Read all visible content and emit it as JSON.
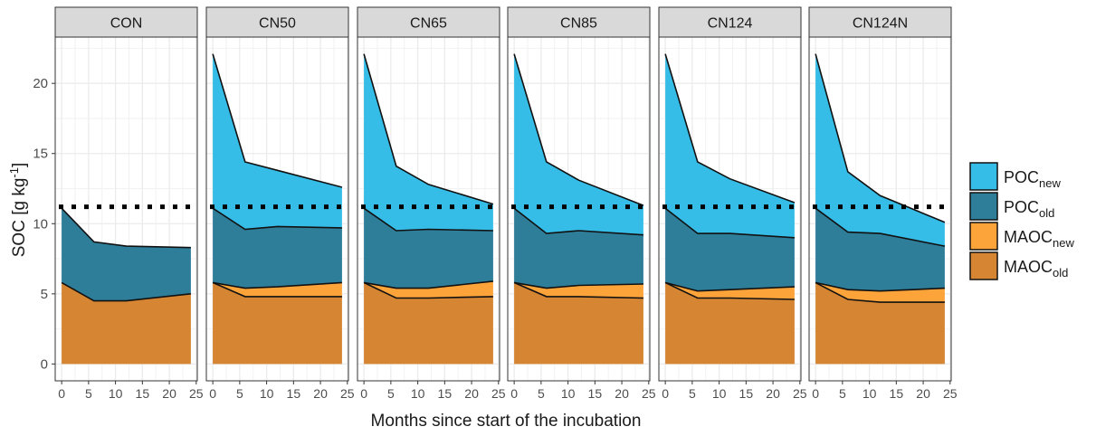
{
  "chart_data": {
    "type": "area",
    "stacked": true,
    "facet_labels": [
      "CON",
      "CN50",
      "CN65",
      "CN85",
      "CN124",
      "CN124N"
    ],
    "xlabel": "Months since start of the incubation",
    "ylabel": "SOC [g kg",
    "ylabel_sup": "-1",
    "ylabel_close": "]",
    "x": [
      0,
      6,
      12,
      24
    ],
    "x_ticks": [
      0,
      5,
      10,
      15,
      20,
      25
    ],
    "y_ticks": [
      0,
      5,
      10,
      15,
      20
    ],
    "xlim": [
      -1.2,
      25.2
    ],
    "ylim": [
      -1.2,
      23.3
    ],
    "reference_line": 11.2,
    "grid": true,
    "legend_position": "right",
    "colors": {
      "MAOC_old": "#d68532",
      "MAOC_new": "#fca33a",
      "POC_old": "#2e7d99",
      "POC_new": "#35bde8",
      "panel_strip": "#d9d9d9",
      "gridline": "#ebebeb"
    },
    "legend": [
      {
        "key": "POC_new",
        "base": "POC",
        "sub": "new"
      },
      {
        "key": "POC_old",
        "base": "POC",
        "sub": "old"
      },
      {
        "key": "MAOC_new",
        "base": "MAOC",
        "sub": "new"
      },
      {
        "key": "MAOC_old",
        "base": "MAOC",
        "sub": "old"
      }
    ],
    "panels": [
      {
        "label": "CON",
        "series": {
          "MAOC_old": [
            5.8,
            4.5,
            4.5,
            5.0
          ],
          "MAOC_new": [
            0,
            0,
            0,
            0
          ],
          "POC_old": [
            5.3,
            4.2,
            3.9,
            3.3
          ],
          "POC_new": [
            0,
            0,
            0,
            0
          ]
        }
      },
      {
        "label": "CN50",
        "series": {
          "MAOC_old": [
            5.8,
            4.8,
            4.8,
            4.8
          ],
          "MAOC_new": [
            0,
            0.6,
            0.7,
            1.0
          ],
          "POC_old": [
            5.3,
            4.2,
            4.3,
            3.9
          ],
          "POC_new": [
            11.0,
            4.8,
            4.0,
            2.9
          ]
        }
      },
      {
        "label": "CN65",
        "series": {
          "MAOC_old": [
            5.8,
            4.7,
            4.7,
            4.8
          ],
          "MAOC_new": [
            0,
            0.7,
            0.7,
            1.1
          ],
          "POC_old": [
            5.3,
            4.1,
            4.2,
            3.6
          ],
          "POC_new": [
            11.0,
            4.6,
            3.2,
            1.9
          ]
        }
      },
      {
        "label": "CN85",
        "series": {
          "MAOC_old": [
            5.8,
            4.8,
            4.8,
            4.7
          ],
          "MAOC_new": [
            0,
            0.6,
            0.8,
            1.0
          ],
          "POC_old": [
            5.3,
            3.9,
            3.9,
            3.5
          ],
          "POC_new": [
            11.0,
            5.1,
            3.6,
            2.1
          ]
        }
      },
      {
        "label": "CN124",
        "series": {
          "MAOC_old": [
            5.8,
            4.7,
            4.7,
            4.6
          ],
          "MAOC_new": [
            0,
            0.5,
            0.6,
            0.9
          ],
          "POC_old": [
            5.3,
            4.1,
            4.0,
            3.5
          ],
          "POC_new": [
            11.0,
            5.1,
            3.9,
            2.5
          ]
        }
      },
      {
        "label": "CN124N",
        "series": {
          "MAOC_old": [
            5.8,
            4.6,
            4.4,
            4.4
          ],
          "MAOC_new": [
            0,
            0.7,
            0.8,
            1.0
          ],
          "POC_old": [
            5.3,
            4.1,
            4.1,
            3.0
          ],
          "POC_new": [
            11.0,
            4.3,
            2.7,
            1.7
          ]
        }
      }
    ]
  }
}
